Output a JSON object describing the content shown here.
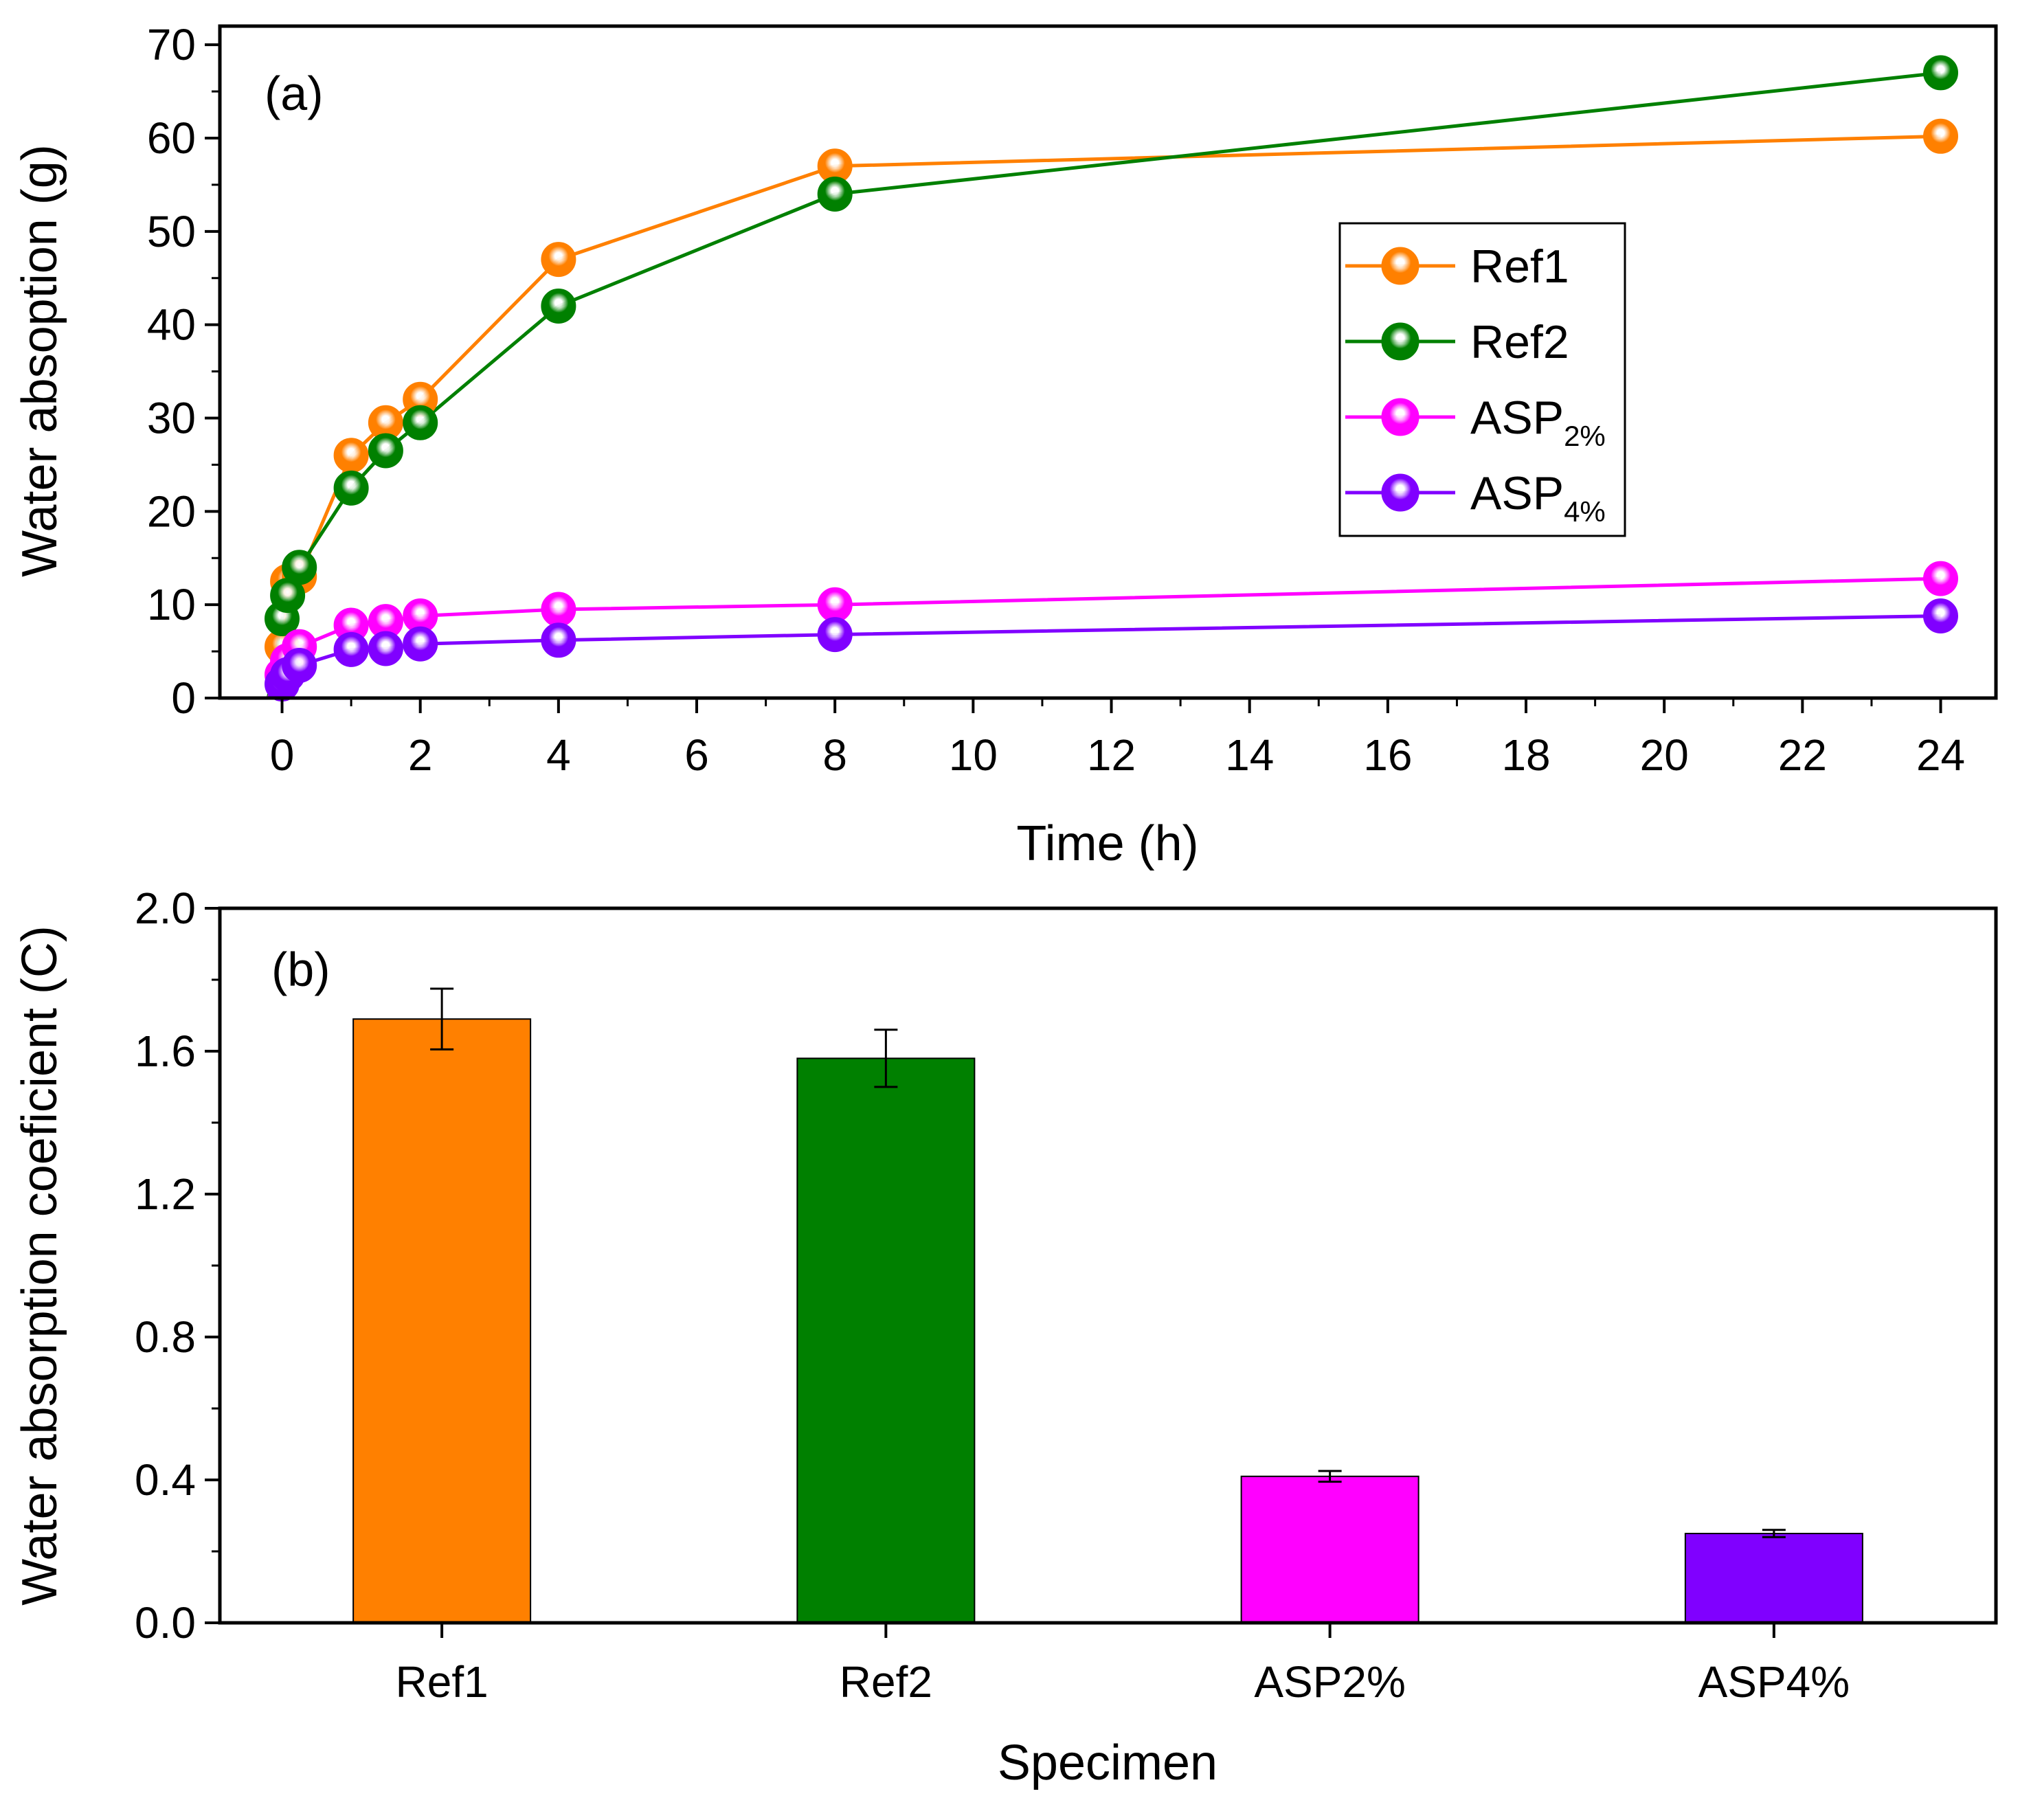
{
  "colors": {
    "ref1": "#ff8000",
    "ref2": "#008000",
    "asp2": "#ff00ff",
    "asp4": "#8000ff",
    "axis": "#000000"
  },
  "chart_data": [
    {
      "type": "line",
      "panel_label": "(a)",
      "xlabel": "Time (h)",
      "ylabel": "Water absoption (g)",
      "xlim": [
        -0.9,
        24.8
      ],
      "ylim": [
        0,
        72
      ],
      "xticks": [
        0,
        2,
        4,
        6,
        8,
        10,
        12,
        14,
        16,
        18,
        20,
        22,
        24
      ],
      "yticks": [
        0,
        10,
        20,
        30,
        40,
        50,
        60,
        70
      ],
      "legend_position": "middle-right",
      "series": [
        {
          "name": "Ref1",
          "legend_main": "Ref1",
          "legend_sub": "",
          "color_key": "ref1",
          "x": [
            -0.2,
            0,
            0.08,
            0.25,
            1,
            1.5,
            2,
            4,
            8,
            24
          ],
          "y": [
            0,
            5.5,
            12.5,
            13,
            26,
            29.5,
            32,
            47,
            57,
            60.2
          ]
        },
        {
          "name": "Ref2",
          "legend_main": "Ref2",
          "legend_sub": "",
          "color_key": "ref2",
          "x": [
            -0.2,
            0,
            0.08,
            0.25,
            1,
            1.5,
            2,
            4,
            8,
            24
          ],
          "y": [
            0,
            8.5,
            11,
            14,
            22.5,
            26.5,
            29.5,
            42,
            54,
            67
          ]
        },
        {
          "name": "ASP2%",
          "legend_main": "ASP",
          "legend_sub": "2%",
          "color_key": "asp2",
          "x": [
            -0.2,
            0,
            0.08,
            0.25,
            1,
            1.5,
            2,
            4,
            8,
            24
          ],
          "y": [
            0,
            2.5,
            4,
            5.5,
            7.8,
            8.2,
            8.8,
            9.5,
            10,
            12.8
          ]
        },
        {
          "name": "ASP4%",
          "legend_main": "ASP",
          "legend_sub": "4%",
          "color_key": "asp4",
          "x": [
            -0.2,
            0,
            0.08,
            0.25,
            1,
            1.5,
            2,
            4,
            8,
            24
          ],
          "y": [
            0,
            1.5,
            2.5,
            3.5,
            5.2,
            5.3,
            5.8,
            6.2,
            6.8,
            8.8
          ]
        }
      ]
    },
    {
      "type": "bar",
      "panel_label": "(b)",
      "xlabel": "Specimen",
      "ylabel": "Water absorption coeficient (C)",
      "ylim": [
        0,
        2.0
      ],
      "yticks": [
        "0.0",
        "0.4",
        "0.8",
        "1.2",
        "1.6",
        "2.0"
      ],
      "categories": [
        "Ref1",
        "Ref2",
        "ASP2%",
        "ASP4%"
      ],
      "values": [
        1.69,
        1.58,
        0.41,
        0.25
      ],
      "errors": [
        0.085,
        0.08,
        0.015,
        0.01
      ],
      "color_keys": [
        "ref1",
        "ref2",
        "asp2",
        "asp4"
      ]
    }
  ]
}
